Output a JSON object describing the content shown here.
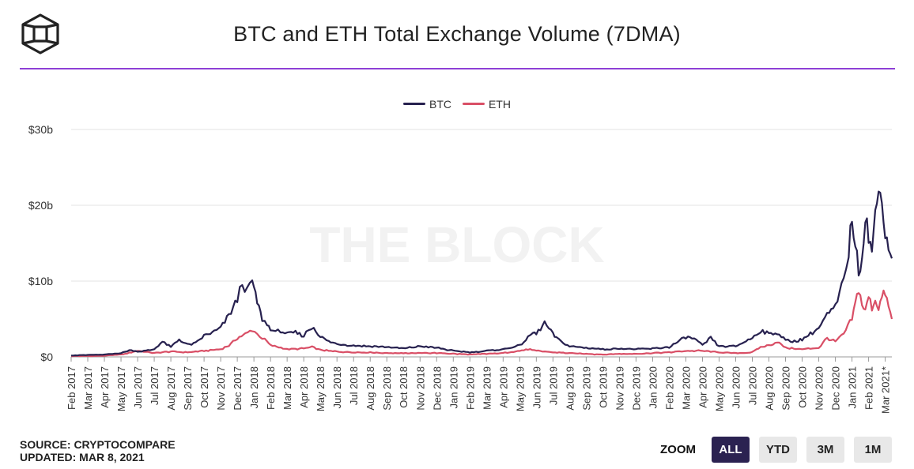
{
  "header": {
    "title": "BTC and ETH Total Exchange Volume (7DMA)",
    "logo": "the-block-cube-logo"
  },
  "watermark": "THE BLOCK",
  "legend": [
    {
      "name": "BTC",
      "color": "#27214f"
    },
    {
      "name": "ETH",
      "color": "#d94f66"
    }
  ],
  "chart_data": {
    "type": "line",
    "title": "BTC and ETH Total Exchange Volume (7DMA)",
    "xlabel": "",
    "ylabel": "",
    "ylim": [
      0,
      30
    ],
    "y_unit": "billion USD",
    "yticks": [
      {
        "value": 0,
        "label": "$0"
      },
      {
        "value": 10,
        "label": "$10b"
      },
      {
        "value": 20,
        "label": "$20b"
      },
      {
        "value": 30,
        "label": "$30b"
      }
    ],
    "xlim": [
      0,
      49.4
    ],
    "xticks": [
      "Feb 2017",
      "Mar 2017",
      "Apr 2017",
      "May 2017",
      "Jun 2017",
      "Jul 2017",
      "Aug 2017",
      "Sep 2017",
      "Oct 2017",
      "Nov 2017",
      "Dec 2017",
      "Jan 2018",
      "Feb 2018",
      "Mar 2018",
      "Apr 2018",
      "May 2018",
      "Jun 2018",
      "Jul 2018",
      "Aug 2018",
      "Sep 2018",
      "Oct 2018",
      "Nov 2018",
      "Dec 2018",
      "Jan 2019",
      "Feb 2019",
      "Mar 2019",
      "Apr 2019",
      "May 2019",
      "Jun 2019",
      "Jul 2019",
      "Aug 2019",
      "Sep 2019",
      "Oct 2019",
      "Nov 2019",
      "Dec 2019",
      "Jan 2020",
      "Feb 2020",
      "Mar 2020",
      "Apr 2020",
      "May 2020",
      "Jun 2020",
      "Jul 2020",
      "Aug 2020",
      "Sep 2020",
      "Oct 2020",
      "Nov 2020",
      "Dec 2020",
      "Jan 2021",
      "Feb 2021",
      "Mar 2021*"
    ],
    "series": [
      {
        "name": "BTC",
        "color": "#27214f",
        "x": [
          0,
          1,
          2,
          3,
          3.5,
          4,
          4.5,
          5,
          5.5,
          6,
          6.5,
          7,
          7.5,
          8,
          8.5,
          9,
          9.5,
          10,
          10.3,
          10.6,
          10.9,
          11.1,
          11.3,
          11.5,
          11.8,
          12,
          12.3,
          12.6,
          13,
          13.5,
          14,
          14.3,
          14.6,
          15,
          15.5,
          16,
          17,
          18,
          19,
          20,
          21,
          22,
          23,
          24,
          25,
          26,
          27,
          27.5,
          27.8,
          28,
          28.5,
          29,
          29.2,
          29.5,
          30,
          31,
          32,
          33,
          34,
          35,
          36,
          37,
          37.5,
          38,
          38.5,
          39,
          40,
          41,
          41.5,
          42,
          42.5,
          43,
          43.3,
          44,
          45,
          45.5,
          46,
          46.5,
          46.8,
          47,
          47.2,
          47.4,
          47.6,
          47.8,
          48,
          48.2,
          48.4,
          48.6,
          48.8,
          49,
          49.2,
          49.4
        ],
        "values": [
          0.2,
          0.25,
          0.3,
          0.5,
          0.9,
          0.7,
          0.8,
          1.0,
          2.0,
          1.3,
          2.3,
          1.6,
          1.8,
          2.8,
          3.2,
          3.8,
          5.5,
          7.5,
          10.0,
          8.5,
          10.1,
          8.0,
          6.5,
          5.0,
          4.2,
          3.8,
          3.2,
          3.5,
          3.0,
          3.2,
          2.8,
          3.6,
          3.9,
          2.7,
          2.0,
          1.7,
          1.5,
          1.4,
          1.3,
          1.1,
          1.4,
          1.2,
          0.8,
          0.6,
          0.8,
          1.0,
          1.5,
          2.5,
          3.2,
          3.0,
          4.5,
          3.0,
          2.5,
          2.0,
          1.4,
          1.2,
          1.0,
          1.1,
          1.0,
          1.1,
          1.3,
          2.6,
          2.4,
          1.5,
          2.5,
          1.4,
          1.4,
          2.5,
          3.5,
          3.0,
          3.2,
          2.2,
          2.0,
          2.3,
          3.8,
          5.5,
          6.5,
          10.0,
          14.0,
          18.5,
          15.0,
          11.0,
          13.5,
          18.8,
          16.0,
          14.0,
          18.5,
          21.5,
          22.0,
          16.0,
          14.5,
          13.0
        ]
      },
      {
        "name": "ETH",
        "color": "#d94f66",
        "x": [
          0,
          1,
          2,
          3,
          4,
          5,
          6,
          7,
          8,
          9,
          9.5,
          10,
          10.5,
          10.9,
          11.2,
          11.5,
          11.8,
          12,
          12.5,
          13,
          14,
          14.5,
          15,
          16,
          17,
          18,
          19,
          20,
          21,
          22,
          23,
          24,
          25,
          26,
          27,
          27.5,
          28,
          29,
          30,
          31,
          32,
          33,
          34,
          35,
          36,
          37,
          38,
          39,
          40,
          41,
          41.5,
          42,
          42.5,
          43,
          44,
          45,
          45.5,
          46,
          46.5,
          47,
          47.2,
          47.4,
          47.6,
          47.8,
          48,
          48.2,
          48.4,
          48.6,
          48.8,
          49,
          49.2,
          49.4
        ],
        "values": [
          0.1,
          0.12,
          0.15,
          0.3,
          0.8,
          0.5,
          0.7,
          0.6,
          0.8,
          1.0,
          1.5,
          2.5,
          3.0,
          3.6,
          3.0,
          2.5,
          2.0,
          1.5,
          1.3,
          1.0,
          1.1,
          1.3,
          0.9,
          0.7,
          0.6,
          0.6,
          0.5,
          0.5,
          0.5,
          0.5,
          0.4,
          0.3,
          0.4,
          0.5,
          0.8,
          1.0,
          0.8,
          0.6,
          0.5,
          0.4,
          0.3,
          0.4,
          0.4,
          0.5,
          0.6,
          0.8,
          0.8,
          0.6,
          0.5,
          0.6,
          1.3,
          1.5,
          2.0,
          1.2,
          1.0,
          1.2,
          2.5,
          2.0,
          3.0,
          5.0,
          7.0,
          9.0,
          7.0,
          6.0,
          8.0,
          6.5,
          7.5,
          6.5,
          7.8,
          8.5,
          6.5,
          5.0
        ]
      }
    ]
  },
  "footer": {
    "source": "SOURCE: CRYPTOCOMPARE",
    "updated": "UPDATED: MAR 8, 2021",
    "zoom_label": "ZOOM",
    "zoom_buttons": [
      "ALL",
      "YTD",
      "3M",
      "1M"
    ],
    "zoom_selected": "ALL"
  }
}
